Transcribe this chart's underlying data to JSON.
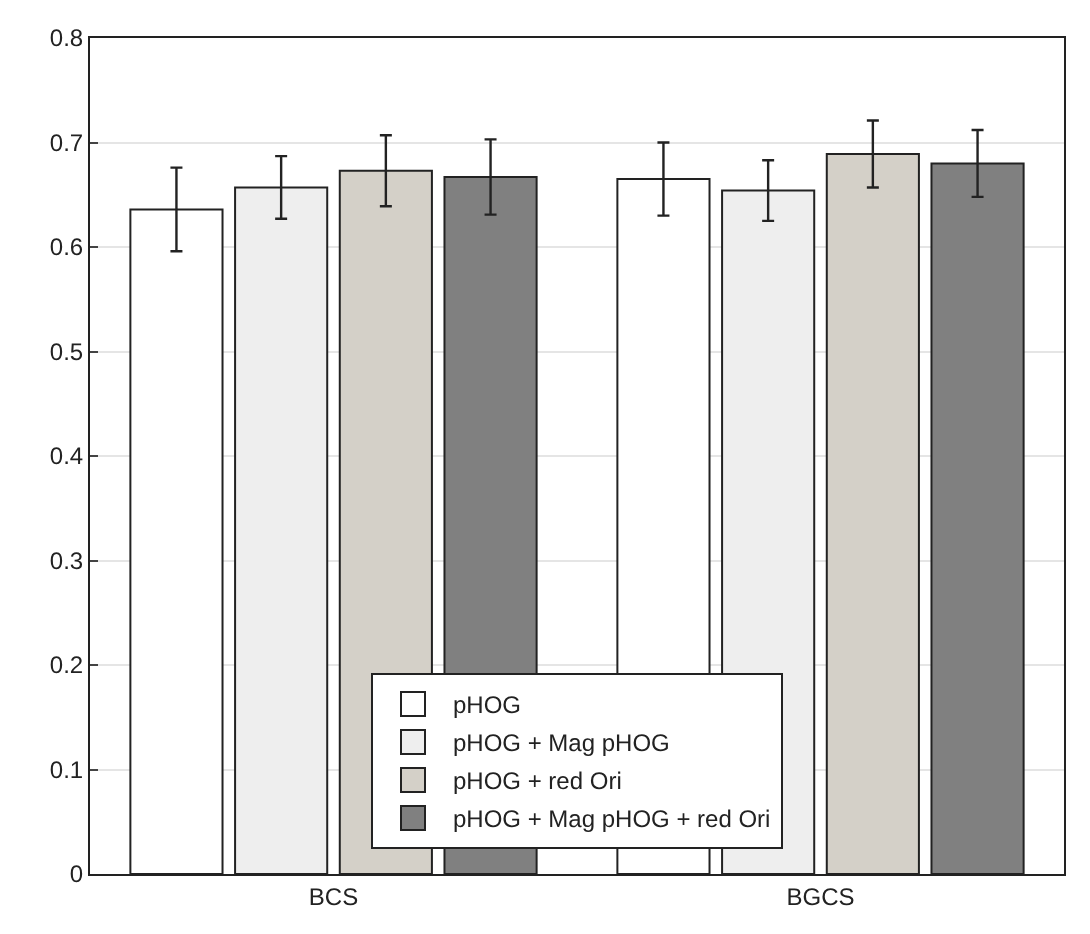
{
  "chart_data": {
    "type": "bar",
    "categories": [
      "BCS",
      "BGCS"
    ],
    "series": [
      {
        "name": "pHOG",
        "color": "#ffffff",
        "values": [
          0.636,
          0.665
        ],
        "errors": [
          0.04,
          0.035
        ]
      },
      {
        "name": "pHOG + Mag pHOG",
        "color": "#eeeeee",
        "values": [
          0.657,
          0.654
        ],
        "errors": [
          0.03,
          0.029
        ]
      },
      {
        "name": "pHOG + red Ori",
        "color": "#d4d0c8",
        "values": [
          0.673,
          0.689
        ],
        "errors": [
          0.034,
          0.032
        ]
      },
      {
        "name": "pHOG + Mag pHOG + red Ori",
        "color": "#808080",
        "values": [
          0.667,
          0.68
        ],
        "errors": [
          0.036,
          0.032
        ]
      }
    ],
    "ylim": [
      0,
      0.8
    ],
    "yticks": [
      {
        "value": 0,
        "label": "0"
      },
      0.1,
      0.2,
      0.3,
      0.4,
      0.5,
      0.6,
      0.7,
      0.8
    ],
    "grid": "y",
    "legend": "bottom"
  }
}
